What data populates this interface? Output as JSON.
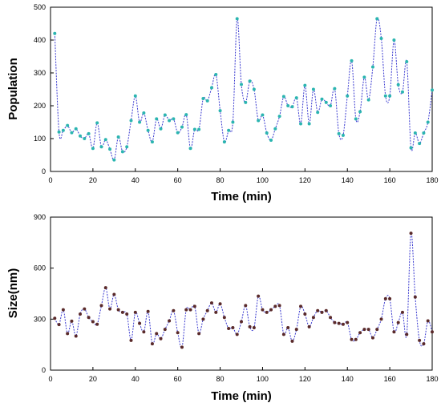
{
  "chart_data": [
    {
      "type": "line",
      "title": "",
      "xlabel": "Time (min)",
      "ylabel": "Population",
      "xlim": [
        0,
        180
      ],
      "ylim": [
        0,
        500
      ],
      "xticks": [
        0,
        20,
        40,
        60,
        80,
        100,
        120,
        140,
        160,
        180
      ],
      "yticks": [
        0,
        100,
        200,
        300,
        400,
        500
      ],
      "grid": false,
      "marker_color": "#2bb5b0",
      "line_color": "#3a3ad0",
      "series": [
        {
          "x": [
            2,
            4,
            6,
            8,
            10,
            12,
            14,
            16,
            18,
            20,
            22,
            24,
            26,
            28,
            30,
            32,
            34,
            36,
            38,
            40,
            42,
            44,
            46,
            48,
            50,
            52,
            54,
            56,
            58,
            60,
            62,
            64,
            66,
            68,
            70,
            72,
            74,
            76,
            78,
            80,
            82,
            84,
            86,
            88,
            90,
            92,
            94,
            96,
            98,
            100,
            102,
            104,
            106,
            108,
            110,
            112,
            114,
            116,
            118,
            120,
            122,
            124,
            126,
            128,
            130,
            132,
            134,
            136,
            138,
            140,
            142,
            144,
            146,
            148,
            150,
            152,
            154,
            156,
            158,
            160,
            162,
            164,
            166,
            168,
            170,
            172,
            174,
            176,
            178,
            180
          ],
          "y": [
            420,
            120,
            125,
            140,
            118,
            130,
            108,
            100,
            115,
            70,
            148,
            75,
            97,
            68,
            35,
            105,
            60,
            75,
            155,
            230,
            150,
            178,
            125,
            90,
            160,
            130,
            172,
            155,
            160,
            118,
            135,
            173,
            70,
            128,
            128,
            222,
            215,
            255,
            295,
            185,
            90,
            125,
            150,
            465,
            265,
            210,
            275,
            250,
            155,
            172,
            117,
            95,
            130,
            168,
            228,
            200,
            197,
            224,
            145,
            262,
            145,
            250,
            180,
            220,
            210,
            200,
            252,
            115,
            110,
            230,
            337,
            160,
            182,
            287,
            218,
            318,
            465,
            405,
            230,
            230,
            400,
            264,
            242,
            334,
            72,
            117,
            85,
            117,
            150,
            248
          ]
        }
      ]
    },
    {
      "type": "line",
      "title": "",
      "xlabel": "Time (min)",
      "ylabel": "Size(nm)",
      "xlim": [
        0,
        180
      ],
      "ylim": [
        0,
        900
      ],
      "xticks": [
        0,
        20,
        40,
        60,
        80,
        100,
        120,
        140,
        160,
        180
      ],
      "yticks": [
        0,
        300,
        600,
        900
      ],
      "grid": false,
      "marker_color": "#5a2a2a",
      "line_color": "#3a3ad0",
      "series": [
        {
          "x": [
            2,
            4,
            6,
            8,
            10,
            12,
            14,
            16,
            18,
            20,
            22,
            24,
            26,
            28,
            30,
            32,
            34,
            36,
            38,
            40,
            42,
            44,
            46,
            48,
            50,
            52,
            54,
            56,
            58,
            60,
            62,
            64,
            66,
            68,
            70,
            72,
            74,
            76,
            78,
            80,
            82,
            84,
            86,
            88,
            90,
            92,
            94,
            96,
            98,
            100,
            102,
            104,
            106,
            108,
            110,
            112,
            114,
            116,
            118,
            120,
            122,
            124,
            126,
            128,
            130,
            132,
            134,
            136,
            138,
            140,
            142,
            144,
            146,
            148,
            150,
            152,
            154,
            156,
            158,
            160,
            162,
            164,
            166,
            168,
            170,
            172,
            174,
            176,
            178,
            180
          ],
          "y": [
            305,
            268,
            355,
            215,
            288,
            200,
            330,
            360,
            310,
            285,
            270,
            380,
            485,
            360,
            445,
            355,
            340,
            330,
            175,
            340,
            275,
            225,
            345,
            155,
            215,
            185,
            240,
            290,
            350,
            220,
            135,
            355,
            355,
            375,
            215,
            300,
            350,
            395,
            340,
            390,
            310,
            245,
            250,
            210,
            285,
            380,
            255,
            250,
            435,
            355,
            340,
            355,
            375,
            380,
            210,
            250,
            170,
            240,
            375,
            330,
            255,
            310,
            350,
            340,
            350,
            310,
            280,
            275,
            270,
            280,
            180,
            180,
            220,
            240,
            240,
            190,
            240,
            300,
            420,
            420,
            225,
            280,
            340,
            210,
            805,
            430,
            175,
            155,
            290,
            225
          ]
        }
      ]
    }
  ]
}
